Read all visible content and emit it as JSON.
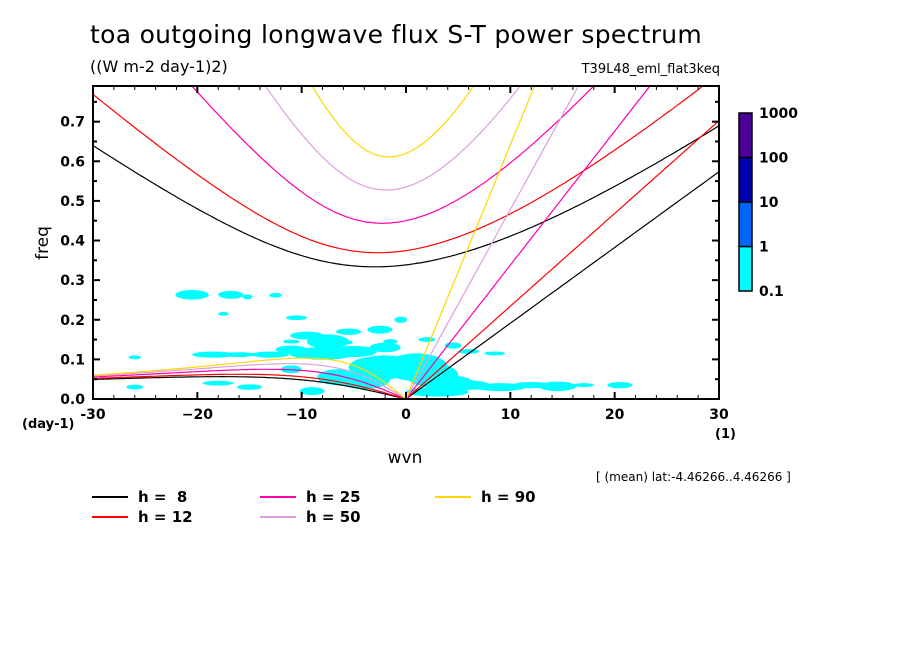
{
  "chart_data": {
    "type": "line",
    "title": "toa outgoing longwave flux S-T power spectrum",
    "subtitle": "((W m-2 day-1)2)",
    "experiment": "T39L48_eml_flat3keq",
    "region_note": "[ (mean) lat:-4.46266..4.46266 ]",
    "xlabel": "wvn",
    "ylabel": "freq",
    "x_unit": "(1)",
    "y_unit": "(day-1)",
    "xlim": [
      -30,
      30
    ],
    "ylim": [
      0.0,
      0.79
    ],
    "x_ticks": [
      -30,
      -20,
      -10,
      0,
      10,
      20,
      30
    ],
    "x_tick_labels": [
      "-30",
      "−20",
      "−10",
      "0",
      "10",
      "20",
      "30"
    ],
    "y_ticks": [
      0.0,
      0.1,
      0.2,
      0.3,
      0.4,
      0.5,
      0.6,
      0.7
    ],
    "y_tick_labels": [
      "0.0",
      "0.1",
      "0.2",
      "0.3",
      "0.4",
      "0.5",
      "0.6",
      "0.7"
    ],
    "grid": false,
    "legend_position": "bottom-left",
    "dispersion_curves": {
      "description": "Equatorial wave dispersion curves: Kelvin, n=1 inertia-gravity and n=1 Rossby",
      "series": [
        {
          "name": "h =  8",
          "equivalent_depth_m": 8,
          "color": "#000000"
        },
        {
          "name": "h = 12",
          "equivalent_depth_m": 12,
          "color": "#ff0000"
        },
        {
          "name": "h = 25",
          "equivalent_depth_m": 25,
          "color": "#ff00aa"
        },
        {
          "name": "h = 50",
          "equivalent_depth_m": 50,
          "color": "#dda0dd"
        },
        {
          "name": "h = 90",
          "equivalent_depth_m": 90,
          "color": "#ffd700"
        }
      ],
      "inertia_gravity_min_freq": {
        "h8": 0.333,
        "h12": 0.366,
        "h25": 0.443,
        "h50": 0.527,
        "h90": 0.611
      },
      "inertia_gravity_min_wvn": -2
    },
    "colorbar": {
      "levels": [
        "0.1",
        "1",
        "10",
        "100",
        "1000"
      ],
      "colors": [
        "#00ffff",
        "#0066ff",
        "#0000aa",
        "#4b0099"
      ]
    },
    "power_contours": {
      "level": "0.1-1",
      "color": "#00ffff",
      "blobs": [
        {
          "wvn": -20.5,
          "freq": 0.263,
          "w": 1.6,
          "h": 0.012
        },
        {
          "wvn": -16.8,
          "freq": 0.263,
          "w": 1.2,
          "h": 0.01
        },
        {
          "wvn": -15.2,
          "freq": 0.258,
          "w": 0.5,
          "h": 0.006
        },
        {
          "wvn": -12.5,
          "freq": 0.262,
          "w": 0.6,
          "h": 0.006
        },
        {
          "wvn": -17.5,
          "freq": 0.215,
          "w": 0.5,
          "h": 0.005
        },
        {
          "wvn": -10.5,
          "freq": 0.205,
          "w": 1.0,
          "h": 0.006
        },
        {
          "wvn": -9.5,
          "freq": 0.16,
          "w": 1.6,
          "h": 0.01
        },
        {
          "wvn": -11.0,
          "freq": 0.145,
          "w": 0.8,
          "h": 0.005
        },
        {
          "wvn": -7.5,
          "freq": 0.145,
          "w": 2.0,
          "h": 0.018
        },
        {
          "wvn": -5.5,
          "freq": 0.17,
          "w": 1.2,
          "h": 0.008
        },
        {
          "wvn": -5.8,
          "freq": 0.143,
          "w": 0.7,
          "h": 0.006
        },
        {
          "wvn": -2.5,
          "freq": 0.175,
          "w": 1.2,
          "h": 0.01
        },
        {
          "wvn": -1.5,
          "freq": 0.145,
          "w": 0.7,
          "h": 0.006
        },
        {
          "wvn": -2.0,
          "freq": 0.13,
          "w": 1.5,
          "h": 0.012
        },
        {
          "wvn": -0.5,
          "freq": 0.2,
          "w": 0.6,
          "h": 0.008
        },
        {
          "wvn": -8.0,
          "freq": 0.115,
          "w": 3.2,
          "h": 0.016
        },
        {
          "wvn": -11.0,
          "freq": 0.125,
          "w": 1.5,
          "h": 0.01
        },
        {
          "wvn": -13.0,
          "freq": 0.112,
          "w": 1.8,
          "h": 0.008
        },
        {
          "wvn": -18.5,
          "freq": 0.112,
          "w": 2.0,
          "h": 0.008
        },
        {
          "wvn": -16.0,
          "freq": 0.112,
          "w": 1.6,
          "h": 0.006
        },
        {
          "wvn": -5.0,
          "freq": 0.12,
          "w": 2.2,
          "h": 0.014
        },
        {
          "wvn": -2.0,
          "freq": 0.08,
          "w": 3.5,
          "h": 0.03
        },
        {
          "wvn": 1.0,
          "freq": 0.08,
          "w": 3.0,
          "h": 0.035
        },
        {
          "wvn": 2.5,
          "freq": 0.06,
          "w": 2.5,
          "h": 0.03
        },
        {
          "wvn": 4.0,
          "freq": 0.04,
          "w": 2.5,
          "h": 0.02
        },
        {
          "wvn": -4.0,
          "freq": 0.05,
          "w": 2.5,
          "h": 0.025
        },
        {
          "wvn": -6.5,
          "freq": 0.055,
          "w": 2.0,
          "h": 0.02
        },
        {
          "wvn": -9.0,
          "freq": 0.02,
          "w": 1.2,
          "h": 0.01
        },
        {
          "wvn": -11.0,
          "freq": 0.075,
          "w": 1.0,
          "h": 0.01
        },
        {
          "wvn": -15.0,
          "freq": 0.03,
          "w": 1.2,
          "h": 0.007
        },
        {
          "wvn": -18.0,
          "freq": 0.04,
          "w": 1.5,
          "h": 0.006
        },
        {
          "wvn": -26.0,
          "freq": 0.03,
          "w": 0.8,
          "h": 0.006
        },
        {
          "wvn": 3.0,
          "freq": 0.018,
          "w": 3.0,
          "h": 0.012
        },
        {
          "wvn": 6.0,
          "freq": 0.035,
          "w": 2.0,
          "h": 0.012
        },
        {
          "wvn": 9.0,
          "freq": 0.03,
          "w": 2.5,
          "h": 0.01
        },
        {
          "wvn": 12.0,
          "freq": 0.035,
          "w": 1.8,
          "h": 0.008
        },
        {
          "wvn": 14.5,
          "freq": 0.032,
          "w": 1.8,
          "h": 0.012
        },
        {
          "wvn": 17.0,
          "freq": 0.035,
          "w": 1.0,
          "h": 0.005
        },
        {
          "wvn": 20.5,
          "freq": 0.035,
          "w": 1.2,
          "h": 0.008
        },
        {
          "wvn": 6.0,
          "freq": 0.12,
          "w": 1.0,
          "h": 0.006
        },
        {
          "wvn": 4.5,
          "freq": 0.135,
          "w": 0.8,
          "h": 0.008
        },
        {
          "wvn": 8.5,
          "freq": 0.115,
          "w": 1.0,
          "h": 0.005
        },
        {
          "wvn": 2.0,
          "freq": 0.15,
          "w": 0.8,
          "h": 0.006
        },
        {
          "wvn": -26.0,
          "freq": 0.105,
          "w": 0.6,
          "h": 0.005
        }
      ]
    }
  }
}
